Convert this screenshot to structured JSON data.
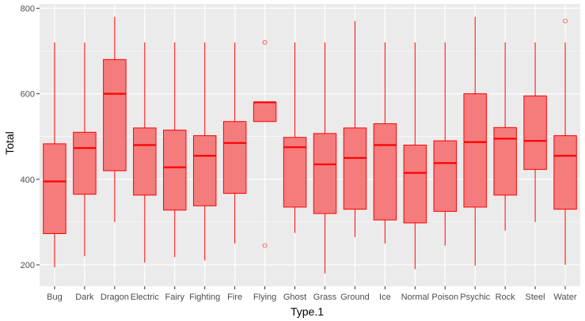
{
  "chart_data": {
    "type": "boxplot",
    "xlabel": "Type.1",
    "ylabel": "Total",
    "ylim": [
      150,
      810
    ],
    "yticks": [
      200,
      400,
      600,
      800
    ],
    "grid": true,
    "legend": "none",
    "colors": {
      "panel": "#ebebeb",
      "grid": "#ffffff",
      "box_fill": "#f47c7c",
      "box_line": "#ff0000"
    },
    "categories": [
      "Bug",
      "Dark",
      "Dragon",
      "Electric",
      "Fairy",
      "Fighting",
      "Fire",
      "Flying",
      "Ghost",
      "Grass",
      "Ground",
      "Ice",
      "Normal",
      "Poison",
      "Psychic",
      "Rock",
      "Steel",
      "Water"
    ],
    "boxes": [
      {
        "min": 194,
        "q1": 273,
        "median": 395,
        "q3": 483,
        "max": 720,
        "outliers": []
      },
      {
        "min": 220,
        "q1": 365,
        "median": 473,
        "q3": 510,
        "max": 720,
        "outliers": []
      },
      {
        "min": 300,
        "q1": 420,
        "median": 600,
        "q3": 680,
        "max": 780,
        "outliers": []
      },
      {
        "min": 205,
        "q1": 363,
        "median": 480,
        "q3": 520,
        "max": 720,
        "outliers": []
      },
      {
        "min": 218,
        "q1": 328,
        "median": 428,
        "q3": 515,
        "max": 720,
        "outliers": []
      },
      {
        "min": 210,
        "q1": 338,
        "median": 455,
        "q3": 502,
        "max": 720,
        "outliers": []
      },
      {
        "min": 250,
        "q1": 367,
        "median": 485,
        "q3": 535,
        "max": 720,
        "outliers": []
      },
      {
        "min": 535,
        "q1": 535,
        "median": 580,
        "q3": 580,
        "max": 580,
        "outliers": [
          245,
          720
        ]
      },
      {
        "min": 275,
        "q1": 335,
        "median": 475,
        "q3": 498,
        "max": 720,
        "outliers": []
      },
      {
        "min": 180,
        "q1": 320,
        "median": 435,
        "q3": 507,
        "max": 720,
        "outliers": []
      },
      {
        "min": 265,
        "q1": 330,
        "median": 450,
        "q3": 520,
        "max": 770,
        "outliers": []
      },
      {
        "min": 250,
        "q1": 305,
        "median": 480,
        "q3": 530,
        "max": 720,
        "outliers": []
      },
      {
        "min": 190,
        "q1": 298,
        "median": 415,
        "q3": 480,
        "max": 720,
        "outliers": []
      },
      {
        "min": 245,
        "q1": 325,
        "median": 438,
        "q3": 490,
        "max": 720,
        "outliers": []
      },
      {
        "min": 198,
        "q1": 335,
        "median": 487,
        "q3": 600,
        "max": 780,
        "outliers": []
      },
      {
        "min": 280,
        "q1": 363,
        "median": 495,
        "q3": 521,
        "max": 720,
        "outliers": []
      },
      {
        "min": 300,
        "q1": 423,
        "median": 490,
        "q3": 595,
        "max": 720,
        "outliers": []
      },
      {
        "min": 200,
        "q1": 330,
        "median": 455,
        "q3": 502,
        "max": 720,
        "outliers": [
          770
        ]
      }
    ]
  }
}
